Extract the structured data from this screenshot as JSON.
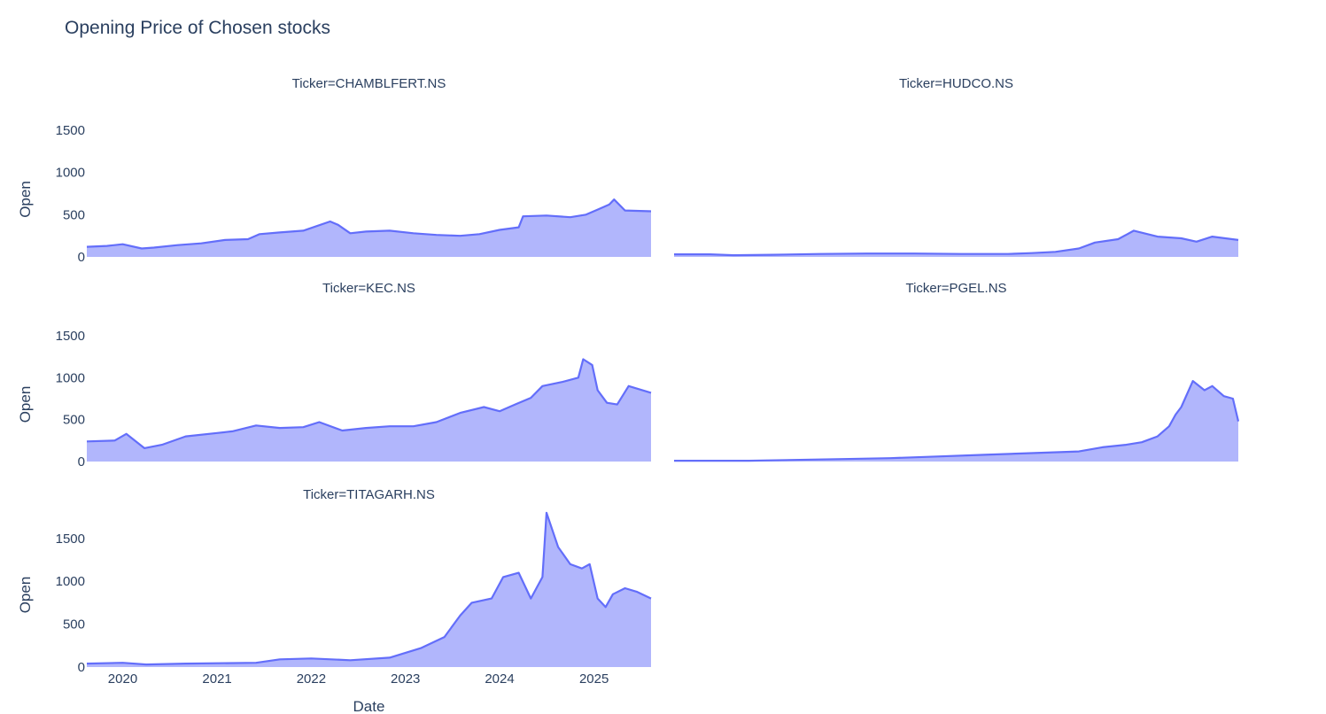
{
  "chart_data": {
    "type": "area",
    "title": "Opening Price of Chosen stocks",
    "line_color": "#636efa",
    "fill_color": "rgba(99,110,250,0.5)",
    "xlabel": "Date",
    "ylabel": "Open",
    "x_ticks": [
      "2020",
      "2021",
      "2022",
      "2023",
      "2024",
      "2025"
    ],
    "y_ticks": [
      "0",
      "500",
      "1000",
      "1500"
    ],
    "x_range": [
      "2019-08-15",
      "2025-08-10"
    ],
    "y_range": [
      0,
      1900
    ],
    "grid": false,
    "panels": [
      {
        "title": "Ticker=CHAMBLFERT.NS",
        "series_name": "CHAMBLFERT.NS",
        "x": [
          "2019-08-15",
          "2019-11-01",
          "2020-01-01",
          "2020-03-15",
          "2020-05-01",
          "2020-08-01",
          "2020-11-01",
          "2021-02-01",
          "2021-05-01",
          "2021-06-15",
          "2021-09-01",
          "2021-12-01",
          "2022-03-15",
          "2022-04-15",
          "2022-06-01",
          "2022-08-01",
          "2022-11-01",
          "2023-02-01",
          "2023-05-01",
          "2023-08-01",
          "2023-10-15",
          "2024-01-01",
          "2024-03-15",
          "2024-04-01",
          "2024-07-01",
          "2024-10-01",
          "2024-12-01",
          "2025-01-15",
          "2025-03-01",
          "2025-03-20",
          "2025-05-01",
          "2025-08-10"
        ],
        "y": [
          120,
          130,
          150,
          100,
          110,
          140,
          160,
          200,
          210,
          270,
          290,
          310,
          420,
          380,
          280,
          300,
          310,
          280,
          260,
          250,
          270,
          320,
          350,
          480,
          490,
          470,
          500,
          560,
          620,
          680,
          550,
          540
        ]
      },
      {
        "title": "Ticker=HUDCO.NS",
        "series_name": "HUDCO.NS",
        "x": [
          "2019-08-15",
          "2020-01-01",
          "2020-04-01",
          "2020-09-01",
          "2021-03-01",
          "2021-09-01",
          "2022-03-01",
          "2022-09-01",
          "2023-03-01",
          "2023-06-01",
          "2023-09-01",
          "2023-12-01",
          "2024-02-01",
          "2024-05-01",
          "2024-07-01",
          "2024-10-01",
          "2025-01-01",
          "2025-03-01",
          "2025-05-01",
          "2025-08-10"
        ],
        "y": [
          30,
          30,
          20,
          25,
          35,
          40,
          40,
          35,
          35,
          45,
          60,
          100,
          170,
          210,
          310,
          240,
          220,
          180,
          240,
          200
        ]
      },
      {
        "title": "Ticker=KEC.NS",
        "series_name": "KEC.NS",
        "x": [
          "2019-08-15",
          "2019-12-01",
          "2020-01-15",
          "2020-03-25",
          "2020-06-01",
          "2020-09-01",
          "2021-01-01",
          "2021-03-01",
          "2021-06-01",
          "2021-09-01",
          "2021-12-01",
          "2022-02-01",
          "2022-05-01",
          "2022-08-01",
          "2022-11-01",
          "2023-02-01",
          "2023-05-01",
          "2023-08-01",
          "2023-11-01",
          "2024-01-01",
          "2024-03-01",
          "2024-05-01",
          "2024-06-15",
          "2024-09-01",
          "2024-11-01",
          "2024-11-20",
          "2024-12-25",
          "2025-01-15",
          "2025-02-20",
          "2025-04-01",
          "2025-05-15",
          "2025-08-10"
        ],
        "y": [
          240,
          250,
          330,
          160,
          200,
          300,
          340,
          360,
          430,
          400,
          410,
          470,
          370,
          400,
          420,
          420,
          470,
          580,
          650,
          600,
          680,
          760,
          900,
          950,
          1000,
          1220,
          1150,
          850,
          700,
          680,
          900,
          820
        ]
      },
      {
        "title": "Ticker=PGEL.NS",
        "series_name": "PGEL.NS",
        "x": [
          "2019-08-15",
          "2020-06-01",
          "2021-06-01",
          "2021-12-01",
          "2022-06-01",
          "2022-12-01",
          "2023-06-01",
          "2023-12-01",
          "2024-03-01",
          "2024-06-01",
          "2024-08-01",
          "2024-10-01",
          "2024-11-15",
          "2024-12-10",
          "2025-01-01",
          "2025-02-15",
          "2025-04-01",
          "2025-05-01",
          "2025-06-15",
          "2025-07-20",
          "2025-08-10"
        ],
        "y": [
          10,
          10,
          30,
          40,
          60,
          80,
          100,
          120,
          170,
          200,
          230,
          300,
          420,
          560,
          650,
          960,
          850,
          900,
          780,
          750,
          480
        ]
      },
      {
        "title": "Ticker=TITAGARH.NS",
        "series_name": "TITAGARH.NS",
        "x": [
          "2019-08-15",
          "2020-01-01",
          "2020-04-01",
          "2020-09-01",
          "2021-06-01",
          "2021-09-01",
          "2022-01-01",
          "2022-06-01",
          "2022-11-01",
          "2023-03-01",
          "2023-06-01",
          "2023-08-01",
          "2023-09-15",
          "2023-12-01",
          "2024-01-15",
          "2024-03-15",
          "2024-05-01",
          "2024-06-15",
          "2024-07-01",
          "2024-08-15",
          "2024-10-01",
          "2024-11-15",
          "2024-12-15",
          "2025-01-15",
          "2025-02-15",
          "2025-03-15",
          "2025-05-01",
          "2025-06-15",
          "2025-08-10"
        ],
        "y": [
          40,
          50,
          30,
          40,
          50,
          90,
          100,
          80,
          110,
          220,
          350,
          600,
          750,
          800,
          1050,
          1100,
          800,
          1050,
          1800,
          1400,
          1200,
          1150,
          1200,
          800,
          700,
          850,
          920,
          880,
          800
        ]
      }
    ]
  }
}
